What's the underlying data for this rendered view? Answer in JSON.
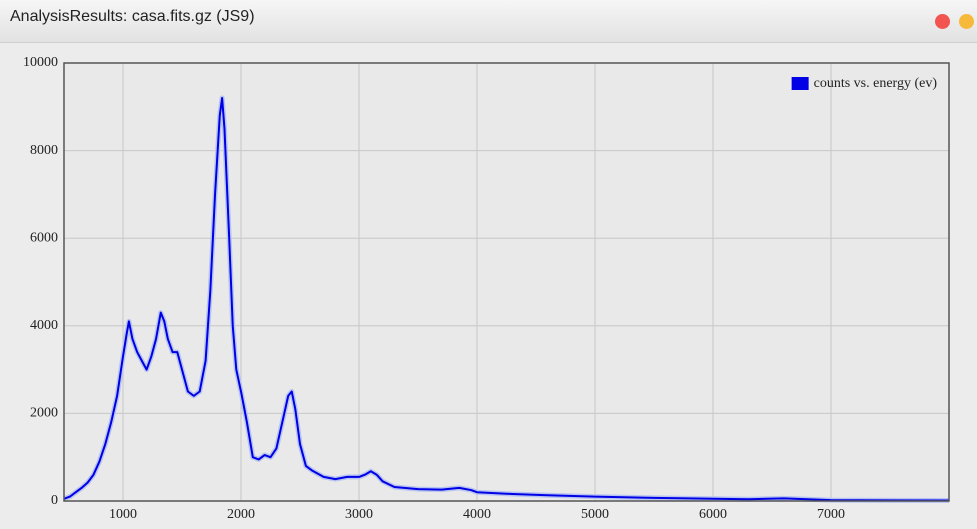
{
  "window": {
    "title": "AnalysisResults: casa.fits.gz (JS9)"
  },
  "chart_data": {
    "type": "line",
    "x": [
      500,
      550,
      600,
      650,
      700,
      750,
      800,
      850,
      900,
      950,
      1000,
      1030,
      1050,
      1080,
      1120,
      1160,
      1200,
      1240,
      1280,
      1320,
      1350,
      1380,
      1420,
      1460,
      1500,
      1550,
      1600,
      1650,
      1700,
      1740,
      1780,
      1820,
      1840,
      1860,
      1900,
      1930,
      1960,
      2000,
      2050,
      2100,
      2150,
      2200,
      2250,
      2300,
      2350,
      2400,
      2430,
      2460,
      2500,
      2550,
      2600,
      2700,
      2800,
      2900,
      3000,
      3050,
      3100,
      3150,
      3200,
      3300,
      3500,
      3700,
      3850,
      3950,
      4000,
      4300,
      4600,
      5000,
      5500,
      6000,
      6300,
      6600,
      6800,
      7000,
      7500,
      8000
    ],
    "series": [
      {
        "name": "counts vs. energy (ev)",
        "color": "#0000e6",
        "values": [
          50,
          100,
          200,
          300,
          420,
          600,
          900,
          1300,
          1800,
          2400,
          3300,
          3800,
          4100,
          3700,
          3400,
          3200,
          3000,
          3300,
          3700,
          4300,
          4100,
          3700,
          3400,
          3400,
          3000,
          2500,
          2400,
          2500,
          3200,
          4800,
          7000,
          8800,
          9200,
          8500,
          6000,
          4000,
          3000,
          2500,
          1800,
          1000,
          950,
          1050,
          1000,
          1200,
          1800,
          2400,
          2500,
          2100,
          1300,
          800,
          700,
          550,
          500,
          550,
          550,
          600,
          680,
          600,
          450,
          320,
          270,
          260,
          300,
          250,
          200,
          160,
          130,
          100,
          70,
          50,
          40,
          60,
          40,
          20,
          15,
          10
        ]
      }
    ],
    "xlim": [
      500,
      8000
    ],
    "xticks": [
      1000,
      2000,
      3000,
      4000,
      5000,
      6000,
      7000
    ],
    "ylim": [
      0,
      10000
    ],
    "yticks": [
      0,
      2000,
      4000,
      6000,
      8000,
      10000
    ],
    "grid": true,
    "legend": "top-right"
  }
}
